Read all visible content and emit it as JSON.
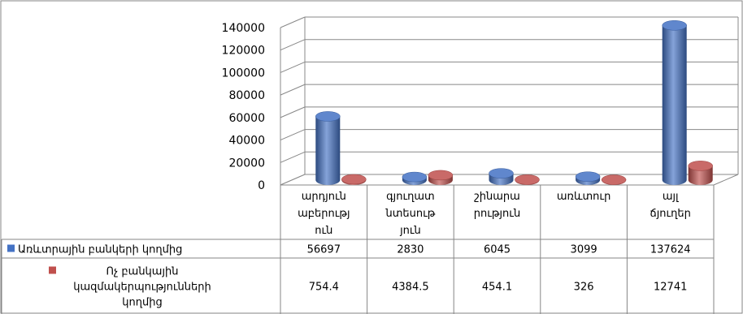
{
  "chart_data": {
    "type": "bar",
    "title": "",
    "xlabel": "",
    "ylabel": "",
    "ylim": [
      0,
      140000
    ],
    "yticks": [
      0,
      20000,
      40000,
      60000,
      80000,
      100000,
      120000,
      140000
    ],
    "categories": [
      [
        "արդյուն",
        "աբերությ",
        "ուն"
      ],
      [
        "գյուղատ",
        "նտեսութ",
        "յուն"
      ],
      [
        "շինարա",
        "րություն"
      ],
      [
        "առևտուր"
      ],
      [
        "այլ",
        "ճյուղեր"
      ]
    ],
    "series": [
      {
        "name": "Առևտրային բանկերի կողմից",
        "name_lines": [
          "Առևտրային բանկերի կողմից"
        ],
        "color": "#4472C4",
        "values": [
          56697,
          2830,
          6045,
          3099,
          137624
        ],
        "display": [
          "56697",
          "2830",
          "6045",
          "3099",
          "137624"
        ]
      },
      {
        "name": "Ոչ բանկային կազմակերպությունների կողմից",
        "name_lines": [
          "Ոչ բանկային",
          "կազմակերպությունների",
          "կողմից"
        ],
        "color": "#C0504D",
        "values": [
          754.4,
          4384.5,
          454.1,
          326,
          12741
        ],
        "display": [
          "754.4",
          "4384.5",
          "454.1",
          "326",
          "12741"
        ]
      }
    ],
    "grid": true,
    "legend": "table"
  }
}
